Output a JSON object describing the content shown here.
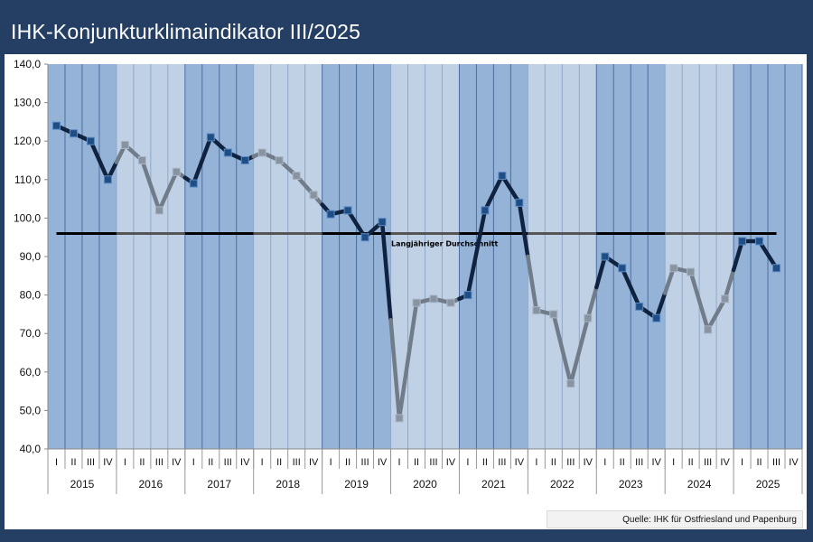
{
  "title": "IHK-Konjunkturklimaindikator III/2025",
  "source": "Quelle: IHK für Ostfriesland und Papenburg",
  "chart_data": {
    "type": "line",
    "title": "IHK-Konjunkturklimaindikator III/2025",
    "years": [
      "2015",
      "2016",
      "2017",
      "2018",
      "2019",
      "2020",
      "2021",
      "2022",
      "2023",
      "2024",
      "2025"
    ],
    "quarters": [
      "I",
      "II",
      "III",
      "IV"
    ],
    "values": [
      124,
      122,
      120,
      110,
      119,
      115,
      102,
      112,
      109,
      121,
      117,
      115,
      117,
      115,
      111,
      106,
      101,
      102,
      95,
      99,
      48,
      78,
      79,
      78,
      80,
      102,
      111,
      104,
      76,
      75,
      57,
      74,
      90,
      87,
      77,
      74,
      87,
      86,
      71,
      79,
      94,
      94,
      87
    ],
    "average": {
      "label": "Langjähriger Durchschnitt",
      "value": 96
    },
    "ylim": [
      40,
      140
    ],
    "yticks": [
      "40,0",
      "50,0",
      "60,0",
      "70,0",
      "80,0",
      "90,0",
      "100,0",
      "110,0",
      "120,0",
      "130,0",
      "140,0"
    ],
    "grid": true,
    "colors": {
      "band_dark": "#95b3d7",
      "band_light": "#c0d1e6",
      "line_dark": "#0f2340",
      "line_light": "#717c8a",
      "marker_dark": "#1f4e85",
      "marker_light": "#8893a2"
    }
  }
}
